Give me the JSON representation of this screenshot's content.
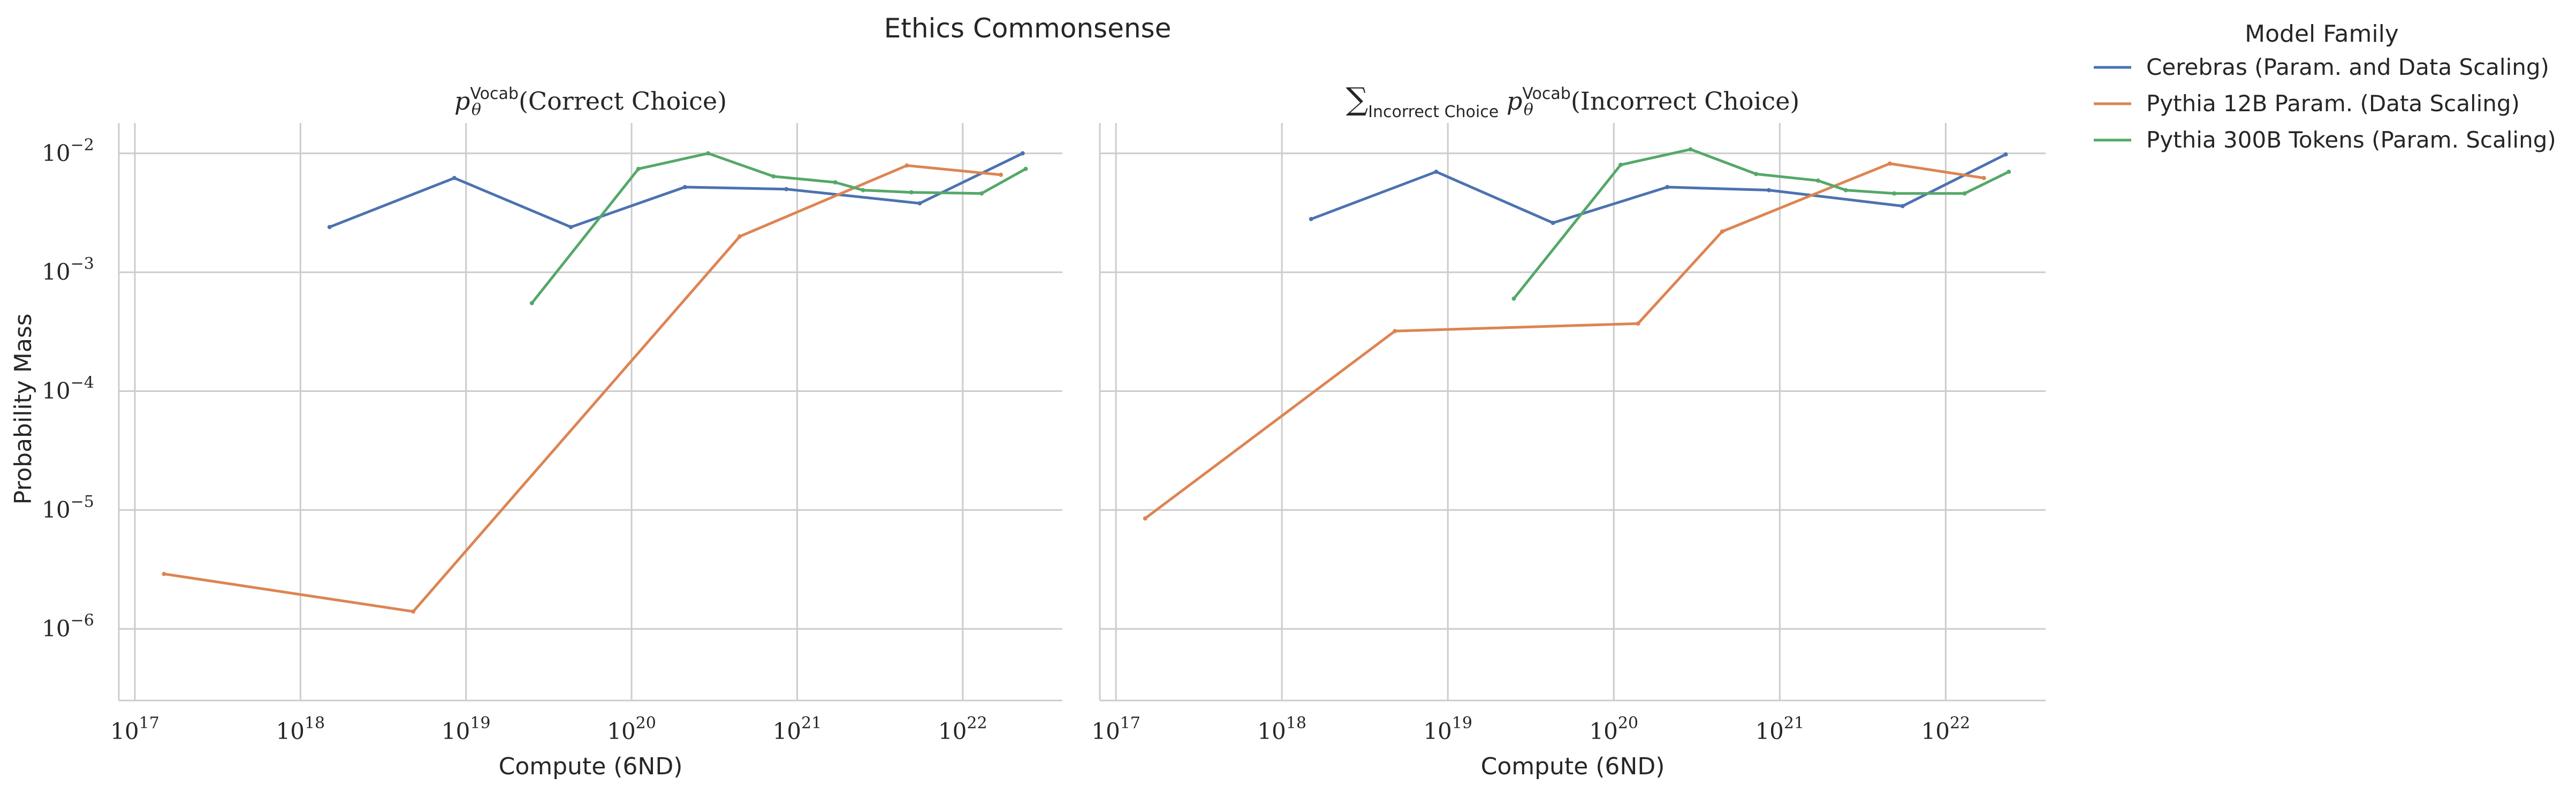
{
  "figure": {
    "suptitle": "Ethics Commonsense",
    "ylabel": "Probability Mass",
    "legend": {
      "title": "Model Family",
      "placement": "outside-right-top"
    }
  },
  "colors": {
    "Cerebras": "#4c72b0",
    "Pythia12B": "#dd8452",
    "Pythia300B": "#55a868",
    "grid": "#cccccc",
    "axis": "#cccccc",
    "text": "#262626"
  },
  "chart_data": [
    {
      "type": "line",
      "title": {
        "prefix": "p",
        "sub": "θ",
        "sup": "Vocab",
        "body": "(Correct Choice)"
      },
      "xlabel": "Compute (6ND)",
      "ylabel": "Probability Mass",
      "x_scale": "log",
      "y_scale": "log",
      "xlim": [
        8e+16,
        4e+22
      ],
      "ylim": [
        2.5e-07,
        0.018
      ],
      "x_ticks": [
        {
          "value": 1e+17,
          "base": "10",
          "exp": "17"
        },
        {
          "value": 1e+18,
          "base": "10",
          "exp": "18"
        },
        {
          "value": 1e+19,
          "base": "10",
          "exp": "19"
        },
        {
          "value": 1e+20,
          "base": "10",
          "exp": "20"
        },
        {
          "value": 1e+21,
          "base": "10",
          "exp": "21"
        },
        {
          "value": 1e+22,
          "base": "10",
          "exp": "22"
        }
      ],
      "y_ticks": [
        {
          "value": 1e-06,
          "base": "10",
          "exp": "−6"
        },
        {
          "value": 1e-05,
          "base": "10",
          "exp": "−5"
        },
        {
          "value": 0.0001,
          "base": "10",
          "exp": "−4"
        },
        {
          "value": 0.001,
          "base": "10",
          "exp": "−3"
        },
        {
          "value": 0.01,
          "base": "10",
          "exp": "−2"
        }
      ],
      "grid": true,
      "series": [
        {
          "name": "Cerebras (Param. and Data Scaling)",
          "color": "#4c72b0",
          "x": [
            1.5e+18,
            8.5e+18,
            4.3e+19,
            2.1e+20,
            8.6e+20,
            5.5e+21,
            2.3e+22
          ],
          "y": [
            0.0024,
            0.0062,
            0.0024,
            0.0052,
            0.005,
            0.0038,
            0.01
          ]
        },
        {
          "name": "Pythia 12B Param. (Data Scaling)",
          "color": "#dd8452",
          "x": [
            1.5e+17,
            4.8e+18,
            4.5e+20,
            4.6e+21,
            1.7e+22
          ],
          "y": [
            2.9e-06,
            1.4e-06,
            0.002,
            0.0079,
            0.0066
          ]
        },
        {
          "name": "Pythia 300B Tokens (Param. Scaling)",
          "color": "#55a868",
          "x": [
            2.5e+19,
            1.1e+20,
            2.9e+20,
            7.2e+20,
            1.7e+21,
            2.5e+21,
            4.9e+21,
            1.3e+22,
            2.4e+22
          ],
          "y": [
            0.00055,
            0.0074,
            0.01,
            0.0064,
            0.0057,
            0.0049,
            0.0047,
            0.0046,
            0.0074
          ]
        }
      ]
    },
    {
      "type": "line",
      "title": {
        "sum": "∑",
        "sum_sub": "Incorrect Choice",
        "prefix": "p",
        "sub": "θ",
        "sup": "Vocab",
        "body": "(Incorrect Choice)"
      },
      "xlabel": "Compute (6ND)",
      "ylabel": "",
      "x_scale": "log",
      "y_scale": "log",
      "xlim": [
        8e+16,
        4e+22
      ],
      "ylim": [
        2.5e-07,
        0.018
      ],
      "x_ticks": [
        {
          "value": 1e+17,
          "base": "10",
          "exp": "17"
        },
        {
          "value": 1e+18,
          "base": "10",
          "exp": "18"
        },
        {
          "value": 1e+19,
          "base": "10",
          "exp": "19"
        },
        {
          "value": 1e+20,
          "base": "10",
          "exp": "20"
        },
        {
          "value": 1e+21,
          "base": "10",
          "exp": "21"
        },
        {
          "value": 1e+22,
          "base": "10",
          "exp": "22"
        }
      ],
      "y_ticks": [
        {
          "value": 1e-06,
          "base": "10",
          "exp": "−6"
        },
        {
          "value": 1e-05,
          "base": "10",
          "exp": "−5"
        },
        {
          "value": 0.0001,
          "base": "10",
          "exp": "−4"
        },
        {
          "value": 0.001,
          "base": "10",
          "exp": "−3"
        },
        {
          "value": 0.01,
          "base": "10",
          "exp": "−2"
        }
      ],
      "show_y_tick_labels": false,
      "grid": true,
      "series": [
        {
          "name": "Cerebras (Param. and Data Scaling)",
          "color": "#4c72b0",
          "x": [
            1.5e+18,
            8.5e+18,
            4.3e+19,
            2.1e+20,
            8.6e+20,
            5.5e+21,
            2.3e+22
          ],
          "y": [
            0.0028,
            0.007,
            0.0026,
            0.0052,
            0.0049,
            0.0036,
            0.0098
          ]
        },
        {
          "name": "Pythia 12B Param. (Data Scaling)",
          "color": "#dd8452",
          "x": [
            1.5e+17,
            4.8e+18,
            1.4e+20,
            4.5e+20,
            4.6e+21,
            1.7e+22
          ],
          "y": [
            8.5e-06,
            0.00032,
            0.00037,
            0.0022,
            0.0082,
            0.0062
          ]
        },
        {
          "name": "Pythia 300B Tokens (Param. Scaling)",
          "color": "#55a868",
          "x": [
            2.5e+19,
            1.1e+20,
            2.9e+20,
            7.2e+20,
            1.7e+21,
            2.5e+21,
            4.9e+21,
            1.3e+22,
            2.4e+22
          ],
          "y": [
            0.0006,
            0.008,
            0.0108,
            0.0067,
            0.0059,
            0.0049,
            0.0046,
            0.0046,
            0.007
          ]
        }
      ]
    }
  ]
}
